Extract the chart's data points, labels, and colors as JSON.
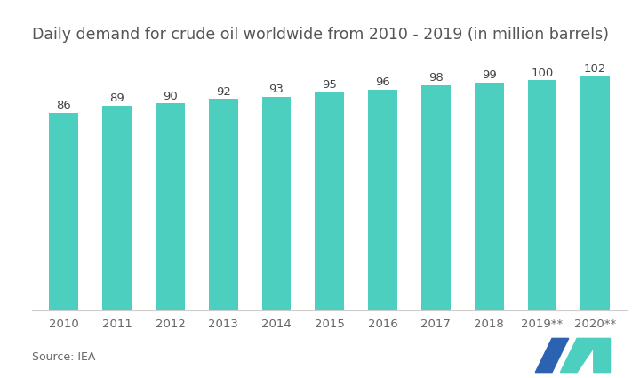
{
  "title": "Daily demand for crude oil worldwide from 2010 - 2019 (in million barrels)",
  "categories": [
    "2010",
    "2011",
    "2012",
    "2013",
    "2014",
    "2015",
    "2016",
    "2017",
    "2018",
    "2019**",
    "2020**"
  ],
  "values": [
    86,
    89,
    90,
    92,
    93,
    95,
    96,
    98,
    99,
    100,
    102
  ],
  "bar_color": "#4DCFBF",
  "background_color": "#ffffff",
  "source_text": "Source: IEA",
  "ylim": [
    0,
    112
  ],
  "title_fontsize": 12.5,
  "label_fontsize": 9.5,
  "tick_fontsize": 9.5,
  "source_fontsize": 9.0,
  "logo_color_dark": "#2b63b0",
  "logo_color_light": "#4DCFBF"
}
